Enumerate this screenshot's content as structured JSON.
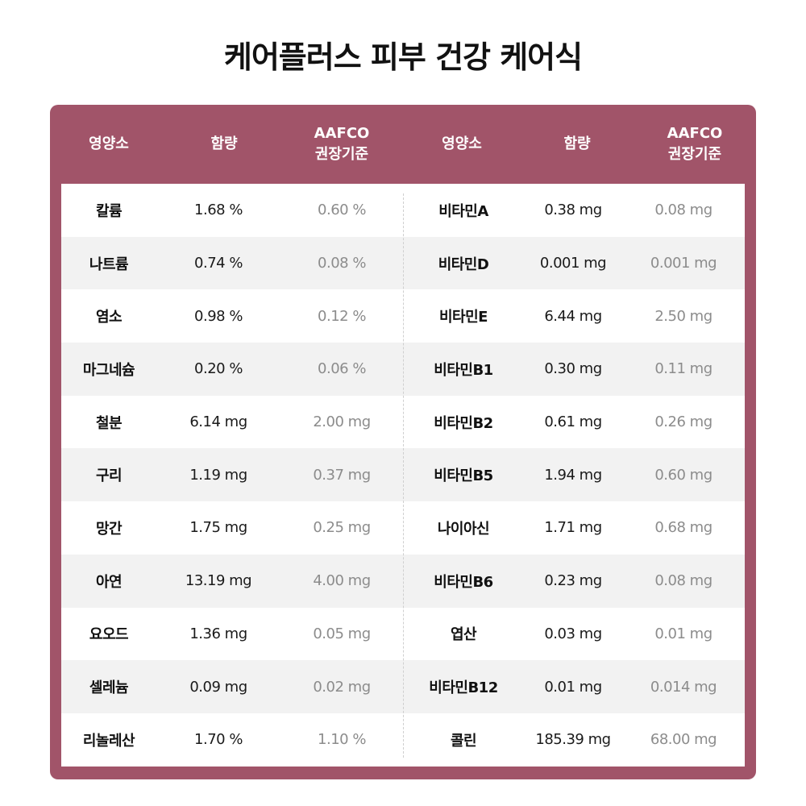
{
  "title": "케어플러스 피부 건강 케어식",
  "headers": {
    "left": [
      "영양소",
      "함량",
      "AAFCO",
      "권장기준"
    ],
    "right": [
      "영양소",
      "함량",
      "AAFCO",
      "권장기준"
    ]
  },
  "colors": {
    "frame": "#a15469",
    "alt_row": "#f2f2f2",
    "standard_text": "#8c8c8c"
  },
  "rows": [
    {
      "n1": "칼륨",
      "a1": "1.68 %",
      "s1": "0.60 %",
      "n2": "비타민A",
      "a2": "0.38 mg",
      "s2": "0.08 mg"
    },
    {
      "n1": "나트륨",
      "a1": "0.74 %",
      "s1": "0.08 %",
      "n2": "비타민D",
      "a2": "0.001 mg",
      "s2": "0.001 mg"
    },
    {
      "n1": "염소",
      "a1": "0.98 %",
      "s1": "0.12 %",
      "n2": "비타민E",
      "a2": "6.44 mg",
      "s2": "2.50 mg"
    },
    {
      "n1": "마그네슘",
      "a1": "0.20 %",
      "s1": "0.06 %",
      "n2": "비타민B1",
      "a2": "0.30 mg",
      "s2": "0.11 mg"
    },
    {
      "n1": "철분",
      "a1": "6.14 mg",
      "s1": "2.00 mg",
      "n2": "비타민B2",
      "a2": "0.61 mg",
      "s2": "0.26 mg"
    },
    {
      "n1": "구리",
      "a1": "1.19 mg",
      "s1": "0.37 mg",
      "n2": "비타민B5",
      "a2": "1.94 mg",
      "s2": "0.60 mg"
    },
    {
      "n1": "망간",
      "a1": "1.75 mg",
      "s1": "0.25 mg",
      "n2": "나이아신",
      "a2": "1.71 mg",
      "s2": "0.68 mg"
    },
    {
      "n1": "아연",
      "a1": "13.19 mg",
      "s1": "4.00 mg",
      "n2": "비타민B6",
      "a2": "0.23 mg",
      "s2": "0.08 mg"
    },
    {
      "n1": "요오드",
      "a1": "1.36 mg",
      "s1": "0.05 mg",
      "n2": "엽산",
      "a2": "0.03 mg",
      "s2": "0.01 mg"
    },
    {
      "n1": "셀레늄",
      "a1": "0.09 mg",
      "s1": "0.02 mg",
      "n2": "비타민B12",
      "a2": "0.01 mg",
      "s2": "0.014 mg"
    },
    {
      "n1": "리놀레산",
      "a1": "1.70 %",
      "s1": "1.10 %",
      "n2": "콜린",
      "a2": "185.39 mg",
      "s2": "68.00 mg"
    }
  ]
}
